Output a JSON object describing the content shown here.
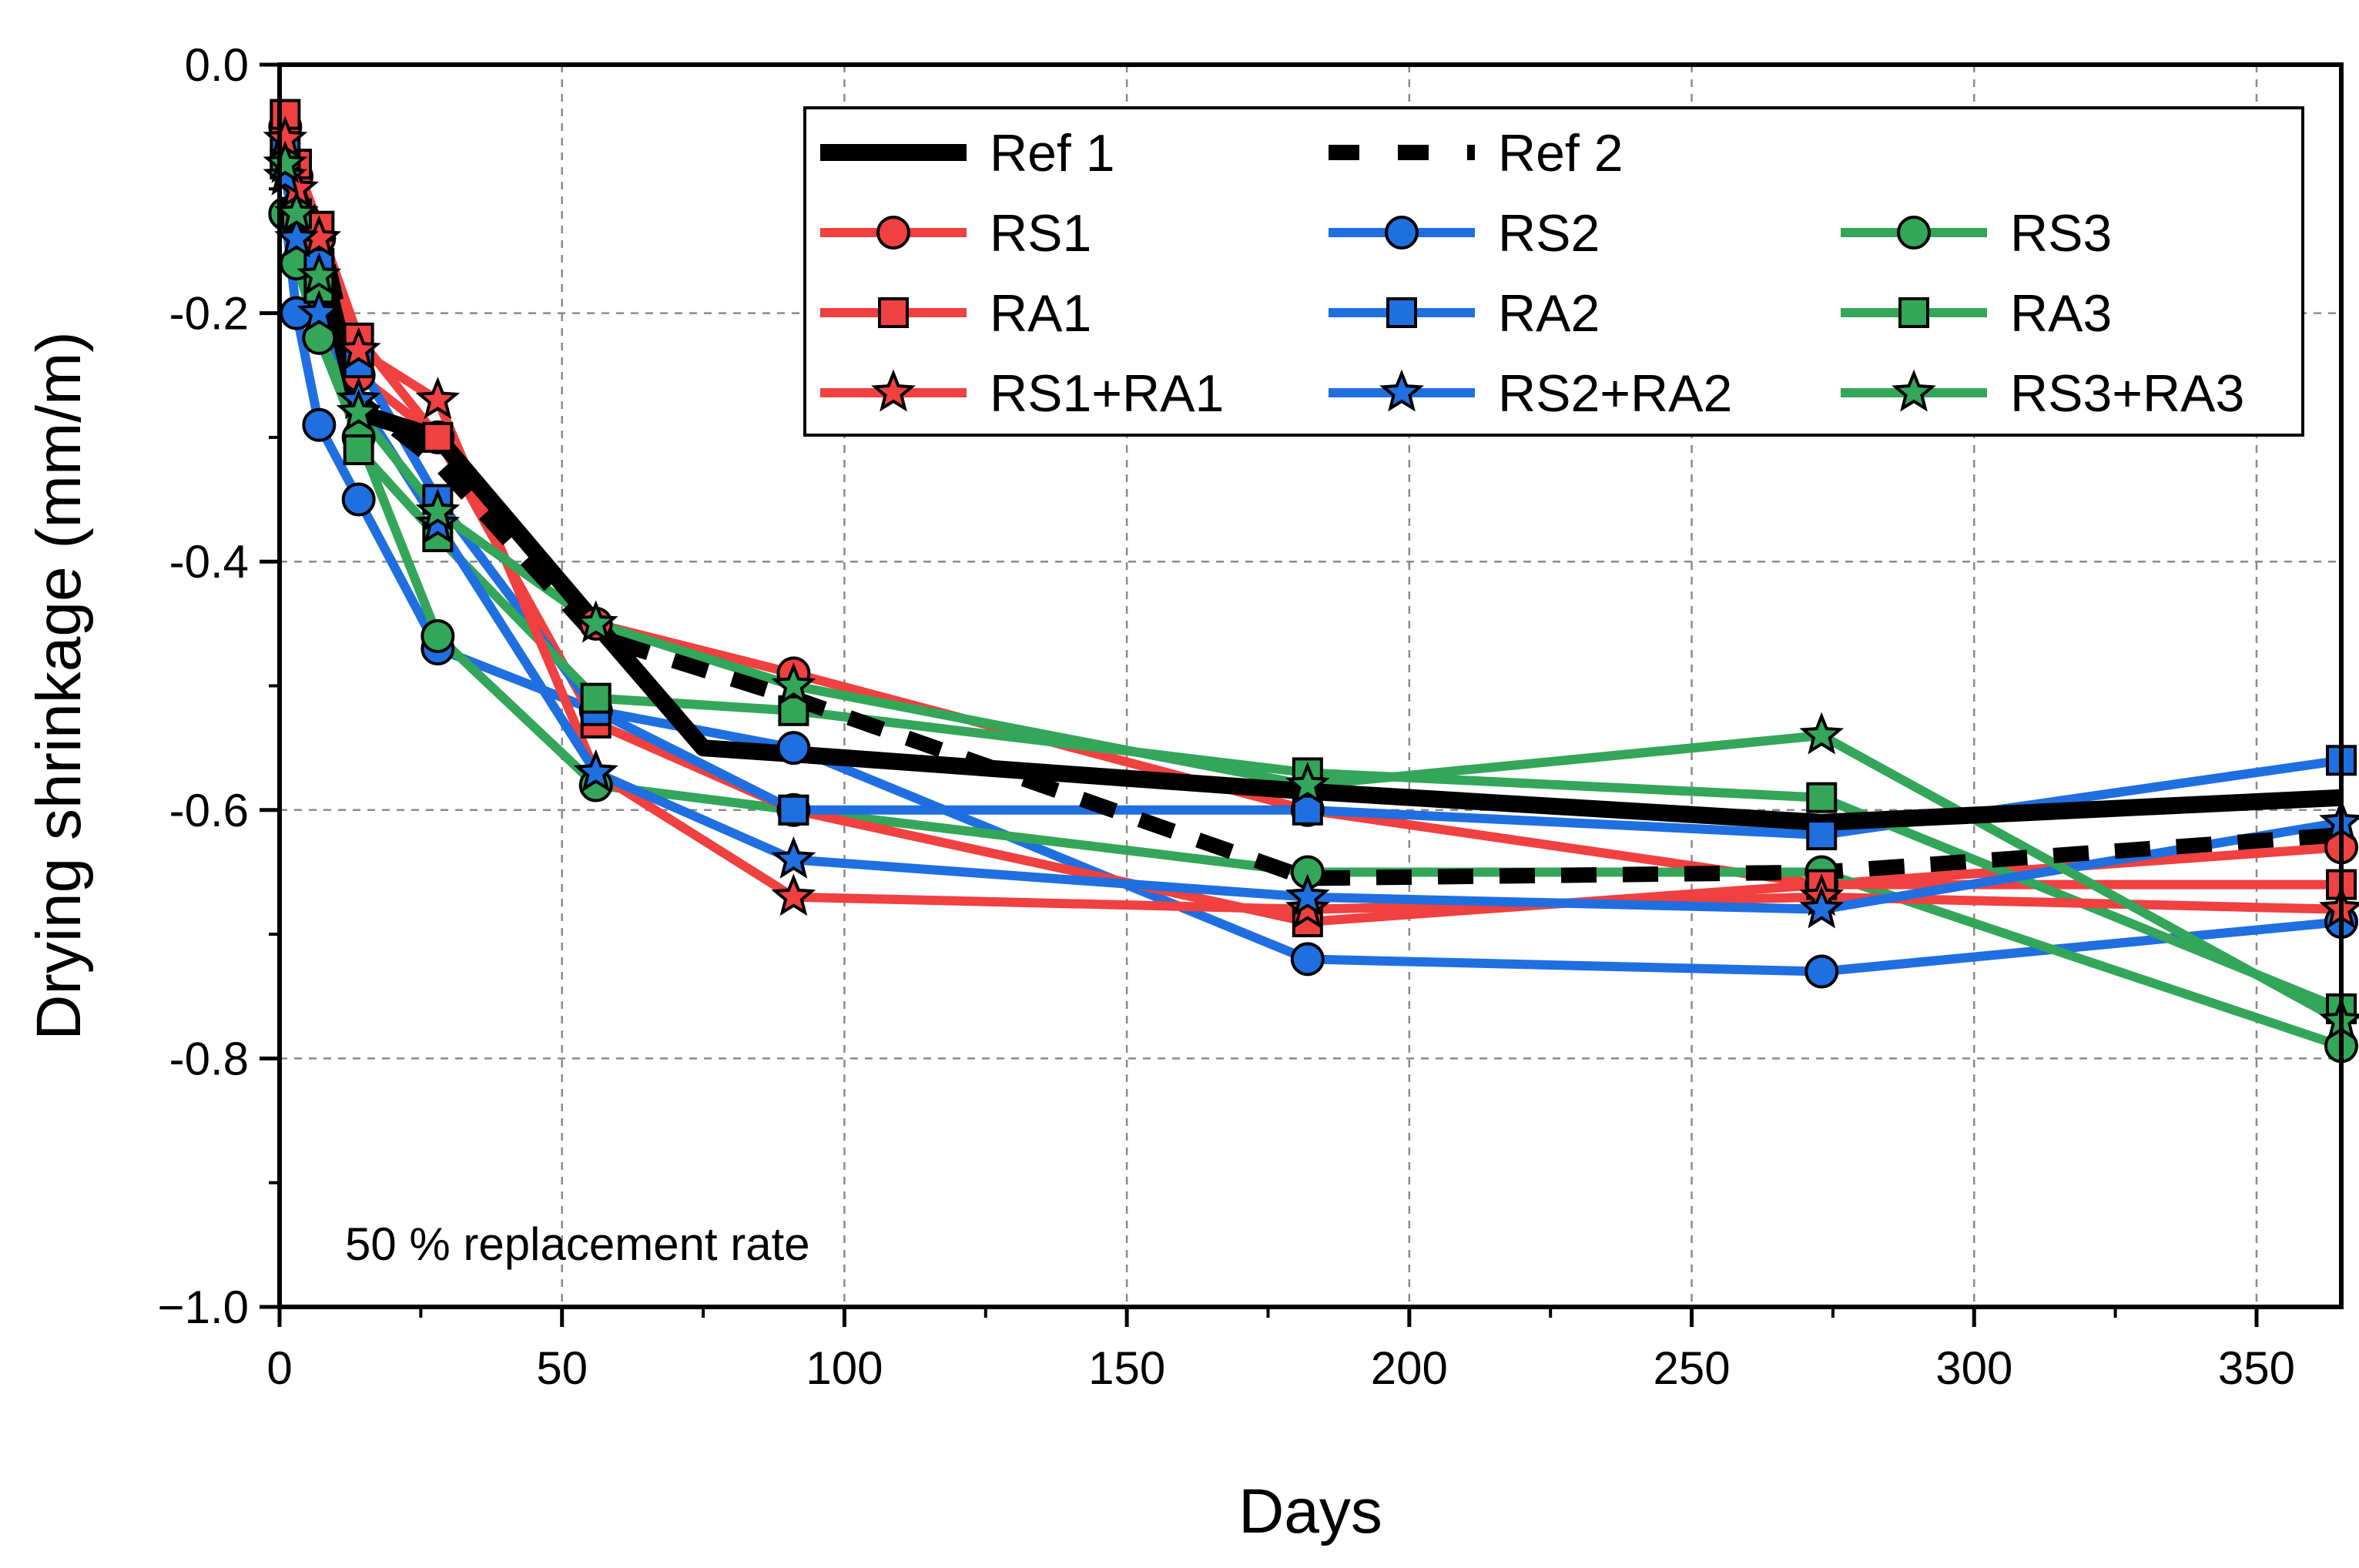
{
  "chart_data": {
    "type": "line",
    "xlabel": "Days",
    "ylabel": "Drying shrinkage (mm/m)",
    "xlim": [
      0,
      365
    ],
    "ylim": [
      -1.0,
      0.0
    ],
    "xticks": [
      0,
      50,
      100,
      150,
      200,
      250,
      300,
      350
    ],
    "yticks": [
      0.0,
      -0.2,
      -0.4,
      -0.6,
      -0.8,
      -1.0
    ],
    "xtick_labels": [
      "0",
      "50",
      "100",
      "150",
      "200",
      "250",
      "300",
      "350"
    ],
    "ytick_labels": [
      "0.0",
      "-0.2",
      "-0.4",
      "-0.6",
      "-0.8",
      "−1.0"
    ],
    "grid": true,
    "legend_position": "top-right",
    "annotation": "50 % replacement rate",
    "colors": {
      "red": "#f04040",
      "blue": "#1f6fe0",
      "green": "#33a65a",
      "black": "#000000"
    },
    "series": [
      {
        "name": "Ref 1",
        "color": "#000000",
        "style": "solid",
        "marker": "none",
        "x": [
          1,
          3,
          7,
          14,
          28,
          56,
          75,
          91,
          182,
          273,
          365
        ],
        "y": [
          -0.06,
          -0.1,
          -0.15,
          -0.28,
          -0.3,
          -0.45,
          -0.55,
          -0.555,
          -0.585,
          -0.61,
          -0.59
        ]
      },
      {
        "name": "Ref 2",
        "color": "#000000",
        "style": "dashed",
        "marker": "none",
        "x": [
          1,
          3,
          7,
          14,
          28,
          56,
          91,
          182,
          273,
          365
        ],
        "y": [
          -0.07,
          -0.1,
          -0.13,
          -0.27,
          -0.32,
          -0.46,
          -0.51,
          -0.655,
          -0.65,
          -0.62
        ]
      },
      {
        "name": "RS1",
        "color": "#f04040",
        "style": "solid",
        "marker": "circle",
        "x": [
          1,
          3,
          7,
          14,
          28,
          56,
          91,
          182,
          273,
          365
        ],
        "y": [
          -0.05,
          -0.09,
          -0.14,
          -0.25,
          -0.3,
          -0.45,
          -0.49,
          -0.6,
          -0.66,
          -0.63
        ]
      },
      {
        "name": "RS2",
        "color": "#1f6fe0",
        "style": "solid",
        "marker": "circle",
        "x": [
          1,
          3,
          7,
          14,
          28,
          56,
          91,
          182,
          273,
          365
        ],
        "y": [
          -0.12,
          -0.2,
          -0.29,
          -0.35,
          -0.47,
          -0.52,
          -0.55,
          -0.72,
          -0.73,
          -0.69
        ]
      },
      {
        "name": "RS3",
        "color": "#33a65a",
        "style": "solid",
        "marker": "circle",
        "x": [
          1,
          3,
          7,
          14,
          28,
          56,
          91,
          182,
          273,
          365
        ],
        "y": [
          -0.12,
          -0.16,
          -0.22,
          -0.3,
          -0.46,
          -0.58,
          -0.6,
          -0.65,
          -0.65,
          -0.79
        ]
      },
      {
        "name": "RA1",
        "color": "#f04040",
        "style": "solid",
        "marker": "square",
        "x": [
          1,
          3,
          7,
          14,
          28,
          56,
          91,
          182,
          273,
          365
        ],
        "y": [
          -0.04,
          -0.08,
          -0.13,
          -0.22,
          -0.3,
          -0.53,
          -0.6,
          -0.69,
          -0.66,
          -0.66
        ]
      },
      {
        "name": "RA2",
        "color": "#1f6fe0",
        "style": "solid",
        "marker": "square",
        "x": [
          1,
          3,
          7,
          14,
          28,
          56,
          91,
          182,
          273,
          365
        ],
        "y": [
          -0.07,
          -0.12,
          -0.16,
          -0.24,
          -0.35,
          -0.52,
          -0.6,
          -0.6,
          -0.62,
          -0.56
        ]
      },
      {
        "name": "RA3",
        "color": "#33a65a",
        "style": "solid",
        "marker": "square",
        "x": [
          1,
          3,
          7,
          14,
          28,
          56,
          91,
          182,
          273,
          365
        ],
        "y": [
          -0.08,
          -0.12,
          -0.18,
          -0.31,
          -0.38,
          -0.51,
          -0.52,
          -0.57,
          -0.59,
          -0.76
        ]
      },
      {
        "name": "RS1+RA1",
        "color": "#f04040",
        "style": "solid",
        "marker": "star",
        "x": [
          1,
          3,
          7,
          14,
          28,
          56,
          91,
          182,
          273,
          365
        ],
        "y": [
          -0.06,
          -0.1,
          -0.14,
          -0.23,
          -0.27,
          -0.57,
          -0.67,
          -0.68,
          -0.67,
          -0.68
        ]
      },
      {
        "name": "RS2+RA2",
        "color": "#1f6fe0",
        "style": "solid",
        "marker": "star",
        "x": [
          1,
          3,
          7,
          14,
          28,
          56,
          91,
          182,
          273,
          365
        ],
        "y": [
          -0.09,
          -0.14,
          -0.2,
          -0.27,
          -0.37,
          -0.57,
          -0.64,
          -0.67,
          -0.68,
          -0.61
        ]
      },
      {
        "name": "RS3+RA3",
        "color": "#33a65a",
        "style": "solid",
        "marker": "star",
        "x": [
          1,
          3,
          7,
          14,
          28,
          56,
          91,
          182,
          273,
          365
        ],
        "y": [
          -0.08,
          -0.12,
          -0.17,
          -0.28,
          -0.36,
          -0.45,
          -0.5,
          -0.58,
          -0.54,
          -0.77
        ]
      }
    ]
  }
}
